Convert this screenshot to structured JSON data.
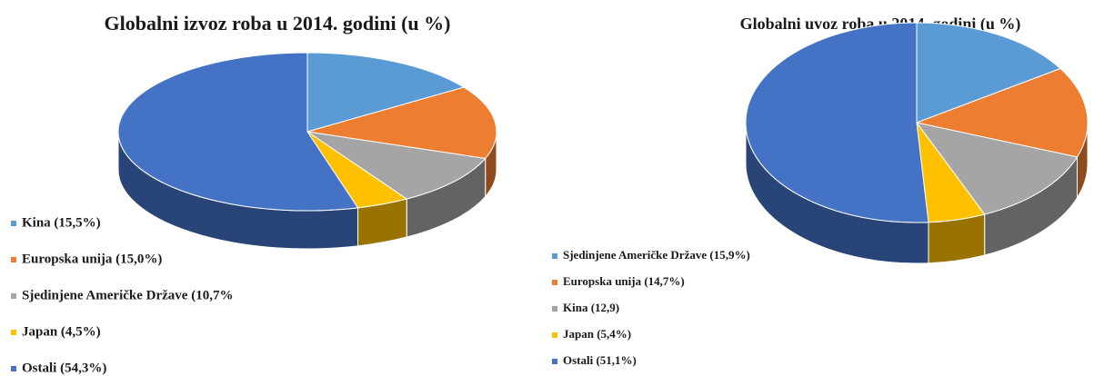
{
  "chart_data": [
    {
      "type": "pie",
      "title": "Globalni izvoz roba u 2014. godini (u %)",
      "categories": [
        "Kina (15,5%)",
        "Europska unija (15,0%)",
        "Sjedinjene Američke Države (10,7%",
        "Japan (4,5%)",
        "Ostali (54,3%)"
      ],
      "values": [
        15.5,
        15.0,
        10.7,
        4.5,
        54.3
      ],
      "colors": [
        "#5b9bd5",
        "#ed7d31",
        "#a5a5a5",
        "#ffc000",
        "#4472c4"
      ]
    },
    {
      "type": "pie",
      "title": "Globalni uvoz roba u 2014. godini (u %)",
      "categories": [
        "Sjedinjene Američke Države (15,9%)",
        "Europska unija (14,7%)",
        "Kina (12,9)",
        "Japan (5,4%)",
        "Ostali (51,1%)"
      ],
      "values": [
        15.9,
        14.7,
        12.9,
        5.4,
        51.1
      ],
      "colors": [
        "#5b9bd5",
        "#ed7d31",
        "#a5a5a5",
        "#ffc000",
        "#4472c4"
      ]
    }
  ]
}
